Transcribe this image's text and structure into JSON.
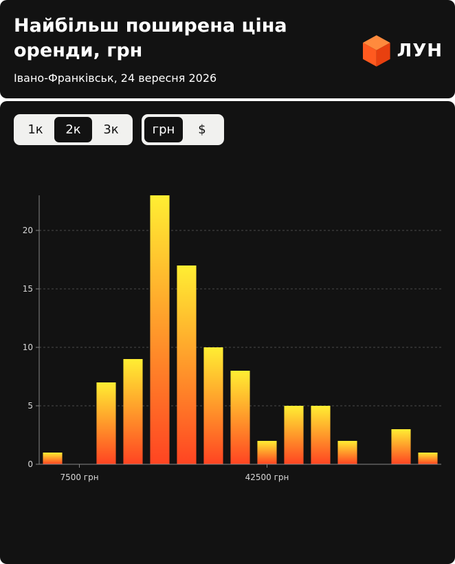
{
  "header": {
    "title": "Найбільш поширена ціна оренди, грн",
    "subtitle": "Івано-Франківськ, 24 вересня 2026",
    "logo_text": "ЛУН",
    "logo_icon": "orange-cube-logo-icon"
  },
  "controls": {
    "rooms": [
      "1к",
      "2к",
      "3к"
    ],
    "rooms_selected": "2к",
    "currency": [
      "грн",
      "$"
    ],
    "currency_selected": "грн"
  },
  "colors": {
    "background": "#121212",
    "bar_top": "#ffee33",
    "bar_bottom": "#ff4422",
    "text": "#ffffff",
    "control_bg": "#f1f1ef"
  },
  "chart_data": {
    "type": "bar",
    "title": "Найбільш поширена ціна оренди, грн",
    "xlabel": "",
    "ylabel": "",
    "ylim": [
      0,
      23
    ],
    "yticks": [
      0,
      5,
      10,
      15,
      20
    ],
    "grid": "horizontal-dashed",
    "xtick_labels": [
      {
        "bin_index": 1,
        "label": "7500 грн"
      },
      {
        "bin_index": 8,
        "label": "42500 грн"
      }
    ],
    "values": [
      1,
      0,
      7,
      9,
      23,
      17,
      10,
      8,
      2,
      5,
      5,
      2,
      0,
      3,
      1
    ]
  }
}
